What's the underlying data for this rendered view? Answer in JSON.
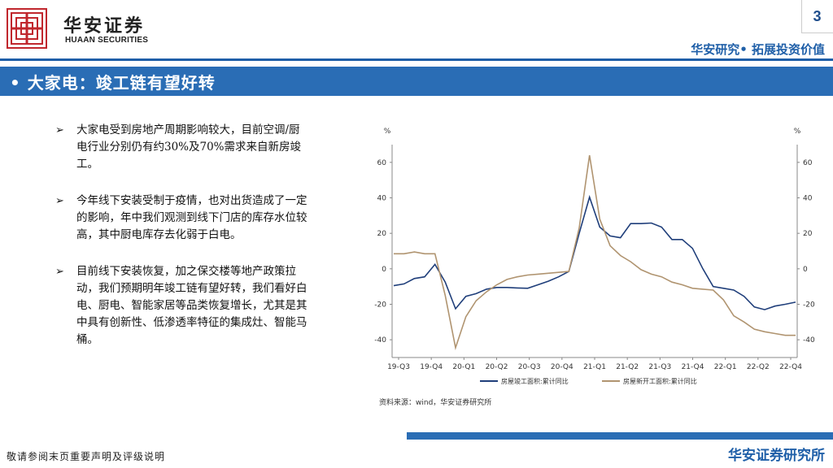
{
  "header": {
    "brand_cn": "华安证券",
    "brand_en": "HUAAN SECURITIES",
    "page_number": "3",
    "slogan": "华安研究• 拓展投资价值",
    "colors": {
      "accent": "#1f5fa8",
      "title_bar": "#2a6db5",
      "logo_red": "#c0272d"
    }
  },
  "title": "• 大家电：竣工链有望好转",
  "bullets": [
    {
      "icon": "arrow-bullet-icon",
      "text": "大家电受到房地产周期影响较大，目前空调/厨电行业分别仍有约30%及70%需求来自新房竣工。"
    },
    {
      "icon": "arrow-bullet-icon",
      "text": "今年线下安装受制于疫情，也对出货造成了一定的影响，年中我们观测到线下门店的库存水位较高，其中厨电库存去化弱于白电。"
    },
    {
      "icon": "arrow-bullet-icon",
      "text": "目前线下安装恢复，加之保交楼等地产政策拉动，我们预期明年竣工链有望好转，我们看好白电、厨电、智能家居等品类恢复增长，尤其是其中具有创新性、低渗透率特征的集成灶、智能马桶。"
    }
  ],
  "chart_data": {
    "type": "line",
    "left_unit": "%",
    "right_unit": "%",
    "ylim": [
      -50,
      70
    ],
    "yticks": [
      -40,
      -20,
      0,
      20,
      40,
      60
    ],
    "x_labels": [
      "19-Q3",
      "19-Q4",
      "20-Q1",
      "20-Q2",
      "20-Q3",
      "20-Q4",
      "21-Q1",
      "21-Q2",
      "21-Q3",
      "21-Q4",
      "22-Q1",
      "22-Q2",
      "22-Q4"
    ],
    "series": [
      {
        "name": "房屋竣工面积:累计同比",
        "color": "#1f3e7a",
        "values": [
          -9.5,
          -8.5,
          -5.5,
          -4.5,
          2.5,
          -7.5,
          -22.5,
          -15.5,
          -14,
          -11.5,
          -10.5,
          -10.5,
          -10.8,
          -11,
          -9,
          -7,
          -4.5,
          -1.5,
          20,
          40.4,
          23.5,
          18.5,
          17.5,
          25.5,
          25.5,
          25.8,
          23.5,
          16.5,
          16.5,
          11.5,
          0,
          -10,
          -11,
          -12,
          -15.5,
          -21.5,
          -23,
          -21,
          -20,
          -18.8
        ]
      },
      {
        "name": "房屋新开工面积:累计同比",
        "color": "#b09470",
        "values": [
          8.5,
          8.5,
          9.5,
          8.5,
          8.5,
          -15,
          -44.5,
          -27,
          -18,
          -13,
          -9,
          -6,
          -4.5,
          -3.5,
          -3,
          -2.5,
          -2,
          -1.5,
          23,
          64,
          28,
          13,
          7.5,
          4,
          -0.5,
          -3,
          -4.5,
          -7.5,
          -9,
          -11,
          -11.5,
          -12,
          -17.5,
          -26.5,
          -30,
          -34,
          -35.5,
          -36.5,
          -37.5,
          -37.5
        ]
      }
    ]
  },
  "source": "资料来源：wind，华安证券研究所",
  "footer": {
    "disclaimer": "敬请参阅末页重要声明及评级说明",
    "brand": "华安证券研究所"
  }
}
